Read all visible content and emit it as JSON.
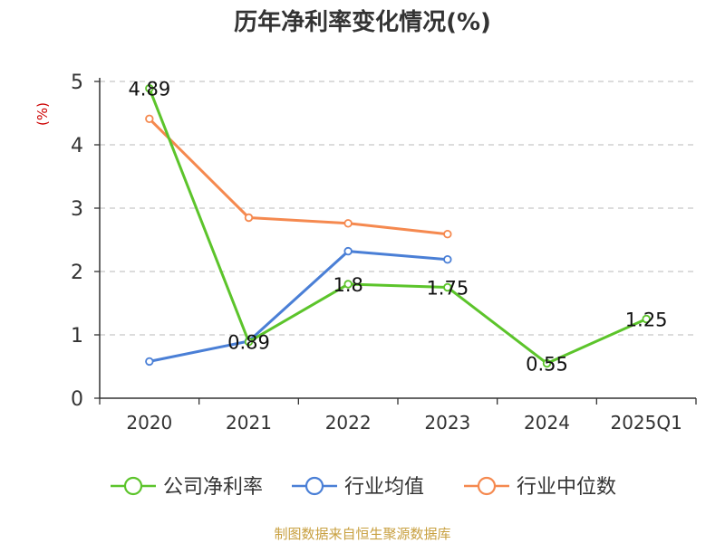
{
  "chart_data": {
    "type": "line",
    "title": "历年净利率变化情况(%)",
    "ylabel": "(%)",
    "categories": [
      "2020",
      "2021",
      "2022",
      "2023",
      "2024",
      "2025Q1"
    ],
    "ylim": [
      0,
      5
    ],
    "yticks": [
      "0",
      "1",
      "2",
      "3",
      "4",
      "5"
    ],
    "grid": true,
    "legend_position": "bottom",
    "series": [
      {
        "name": "公司净利率",
        "color": "#5cc42b",
        "values": [
          4.89,
          0.89,
          1.8,
          1.75,
          0.55,
          1.25
        ],
        "labels": [
          "4.89",
          "0.89",
          "1.8",
          "1.75",
          "0.55",
          "1.25"
        ]
      },
      {
        "name": "行业均值",
        "color": "#4a7fd6",
        "values": [
          0.58,
          0.9,
          2.32,
          2.19,
          null,
          null
        ]
      },
      {
        "name": "行业中位数",
        "color": "#f5894f",
        "values": [
          4.41,
          2.85,
          2.76,
          2.59,
          null,
          null
        ]
      }
    ],
    "ylabel_color": "#cc0000"
  },
  "source": {
    "text": "制图数据来自恒生聚源数据库",
    "color": "#c8a040"
  }
}
